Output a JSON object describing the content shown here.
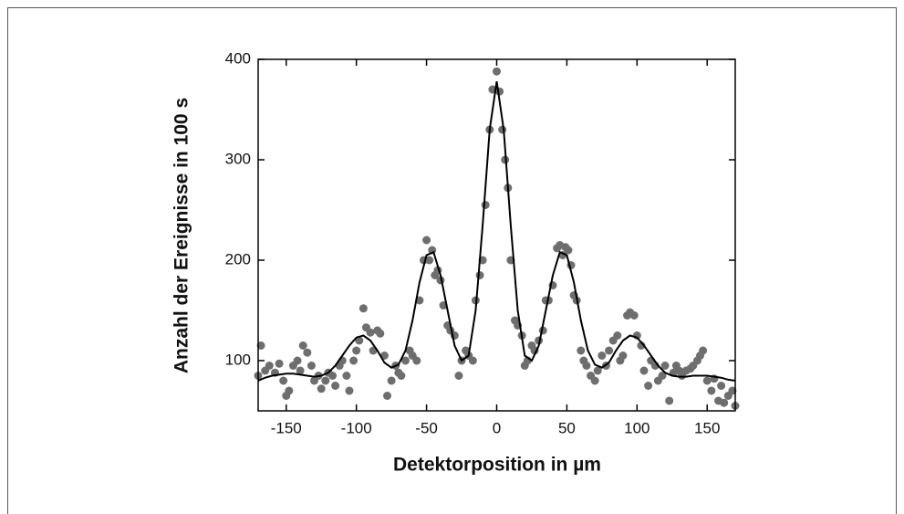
{
  "chart_data": {
    "type": "scatter",
    "xlabel": "Detektorposition in µm",
    "ylabel": "Anzahl der Ereignisse in 100 s",
    "xlim": [
      -170,
      170
    ],
    "xticks": [
      -150,
      -100,
      -50,
      0,
      50,
      100,
      150
    ],
    "ylim": [
      50,
      400
    ],
    "yticks": [
      100,
      200,
      300,
      400
    ],
    "series": [
      {
        "color": "#6e6e6e",
        "x": [
          -170,
          -168,
          -165,
          -162,
          -158,
          -155,
          -152,
          -150,
          -148,
          -145,
          -142,
          -140,
          -138,
          -135,
          -132,
          -130,
          -127,
          -125,
          -122,
          -120,
          -117,
          -115,
          -112,
          -110,
          -107,
          -105,
          -102,
          -100,
          -98,
          -95,
          -93,
          -90,
          -88,
          -85,
          -83,
          -80,
          -78,
          -75,
          -72,
          -70,
          -68,
          -65,
          -62,
          -60,
          -57,
          -55,
          -52,
          -50,
          -48,
          -46,
          -44,
          -42,
          -40,
          -38,
          -35,
          -33,
          -30,
          -27,
          -25,
          -22,
          -20,
          -17,
          -15,
          -12,
          -10,
          -8,
          -5,
          -3,
          0,
          2,
          4,
          6,
          8,
          10,
          13,
          15,
          18,
          20,
          22,
          25,
          27,
          30,
          33,
          35,
          37,
          40,
          43,
          45,
          47,
          49,
          51,
          53,
          55,
          57,
          60,
          62,
          64,
          67,
          70,
          72,
          75,
          78,
          80,
          83,
          86,
          88,
          90,
          93,
          95,
          98,
          100,
          103,
          105,
          108,
          110,
          113,
          115,
          118,
          120,
          123,
          126,
          128,
          130,
          132,
          135,
          138,
          140,
          143,
          145,
          147,
          150,
          153,
          155,
          158,
          160,
          162,
          165,
          168,
          170
        ],
        "values": [
          85,
          115,
          90,
          95,
          88,
          97,
          80,
          65,
          70,
          95,
          100,
          90,
          115,
          108,
          95,
          80,
          85,
          72,
          80,
          88,
          85,
          75,
          95,
          100,
          85,
          70,
          100,
          110,
          120,
          152,
          133,
          128,
          110,
          130,
          127,
          105,
          65,
          80,
          95,
          88,
          85,
          100,
          110,
          105,
          100,
          160,
          200,
          220,
          200,
          210,
          185,
          190,
          180,
          155,
          135,
          130,
          125,
          85,
          100,
          110,
          105,
          100,
          160,
          185,
          200,
          255,
          330,
          370,
          388,
          368,
          330,
          300,
          272,
          200,
          140,
          135,
          125,
          95,
          100,
          115,
          110,
          120,
          130,
          160,
          160,
          175,
          212,
          215,
          205,
          213,
          210,
          195,
          165,
          160,
          110,
          100,
          95,
          85,
          80,
          90,
          105,
          95,
          110,
          120,
          125,
          100,
          105,
          145,
          148,
          145,
          125,
          115,
          90,
          75,
          100,
          95,
          80,
          85,
          95,
          60,
          88,
          95,
          90,
          85,
          90,
          92,
          95,
          100,
          105,
          110,
          80,
          70,
          82,
          60,
          75,
          58,
          65,
          70,
          55
        ]
      },
      {
        "type": "line",
        "color": "#000000",
        "x": [
          -170,
          -165,
          -160,
          -155,
          -150,
          -145,
          -140,
          -135,
          -130,
          -125,
          -120,
          -115,
          -110,
          -105,
          -100,
          -95,
          -90,
          -85,
          -80,
          -75,
          -70,
          -65,
          -60,
          -55,
          -50,
          -45,
          -40,
          -35,
          -30,
          -25,
          -20,
          -15,
          -10,
          -5,
          0,
          5,
          10,
          15,
          20,
          25,
          30,
          35,
          40,
          45,
          50,
          55,
          60,
          65,
          70,
          75,
          80,
          85,
          90,
          95,
          100,
          105,
          110,
          115,
          120,
          125,
          130,
          135,
          140,
          145,
          150,
          155,
          160,
          165,
          170
        ],
        "values": [
          80,
          83,
          85,
          86,
          87,
          87,
          86,
          85,
          84,
          85,
          88,
          95,
          105,
          115,
          123,
          125,
          120,
          110,
          98,
          93,
          96,
          110,
          140,
          178,
          205,
          208,
          185,
          150,
          115,
          100,
          105,
          150,
          235,
          330,
          378,
          330,
          235,
          150,
          105,
          100,
          115,
          150,
          185,
          208,
          205,
          178,
          140,
          110,
          96,
          93,
          98,
          110,
          120,
          125,
          123,
          115,
          105,
          95,
          88,
          85,
          84,
          84,
          85,
          85,
          85,
          84,
          83,
          81,
          80
        ]
      }
    ]
  }
}
